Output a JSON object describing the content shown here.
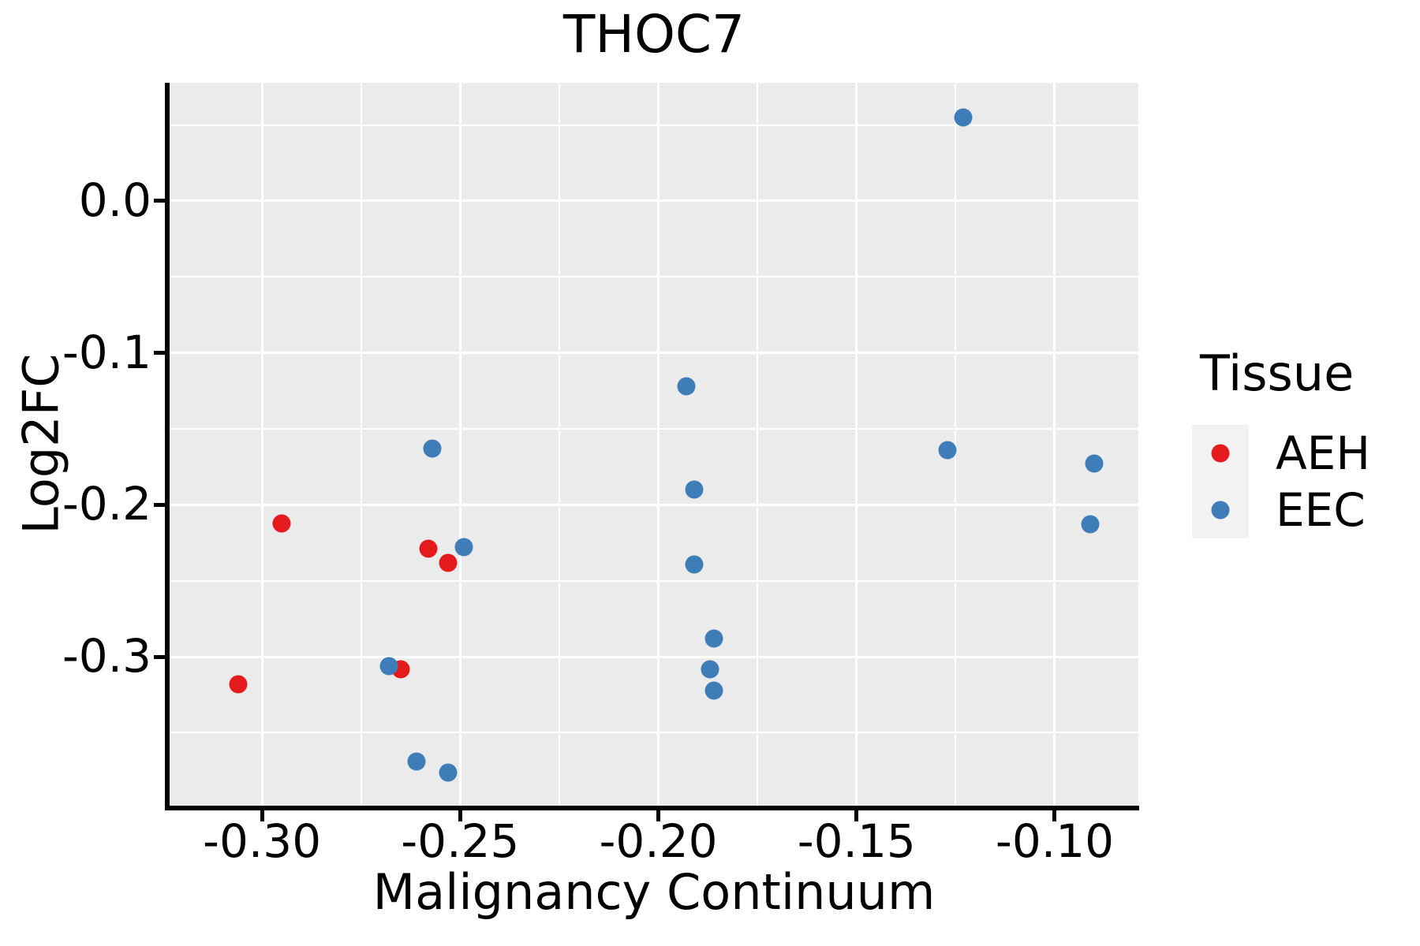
{
  "title": "THOC7",
  "axes": {
    "x": {
      "label": "Malignancy Continuum",
      "ticks": [
        -0.3,
        -0.25,
        -0.2,
        -0.15,
        -0.1
      ],
      "tick_labels": [
        "-0.30",
        "-0.25",
        "-0.20",
        "-0.15",
        "-0.10"
      ],
      "minor_ticks": [
        -0.275,
        -0.225,
        -0.175,
        -0.125
      ],
      "range": [
        -0.3235,
        -0.0789
      ]
    },
    "y": {
      "label": "Log2FC",
      "ticks": [
        0.0,
        -0.1,
        -0.2,
        -0.3
      ],
      "tick_labels": [
        "0.0",
        "-0.1",
        "-0.2",
        "-0.3"
      ],
      "minor_ticks": [
        0.05,
        -0.05,
        -0.15,
        -0.25,
        -0.35
      ],
      "range": [
        -0.398,
        0.0778
      ]
    }
  },
  "legend": {
    "title": "Tissue",
    "entries": [
      {
        "label": "AEH",
        "color": "#E41A1C"
      },
      {
        "label": "EEC",
        "color": "#3E7DB8"
      }
    ]
  },
  "colors": {
    "panel_bg": "#EBEBEB",
    "grid": "#FFFFFF",
    "axis": "#000000",
    "legend_key_bg": "#F2F2F2",
    "aeh": "#E41A1C",
    "eec": "#3E7DB8"
  },
  "chart_data": {
    "type": "scatter",
    "title": "THOC7",
    "xlabel": "Malignancy Continuum",
    "ylabel": "Log2FC",
    "xlim": [
      -0.3235,
      -0.0789
    ],
    "ylim": [
      -0.398,
      0.0778
    ],
    "grid": "on",
    "legend_title": "Tissue",
    "legend_position": "right",
    "series": [
      {
        "name": "AEH",
        "color": "#E41A1C",
        "points": [
          [
            -0.295,
            -0.212
          ],
          [
            -0.306,
            -0.318
          ],
          [
            -0.265,
            -0.308
          ],
          [
            -0.258,
            -0.229
          ],
          [
            -0.253,
            -0.238
          ]
        ]
      },
      {
        "name": "EEC",
        "color": "#3E7DB8",
        "points": [
          [
            -0.268,
            -0.306
          ],
          [
            -0.257,
            -0.163
          ],
          [
            -0.249,
            -0.228
          ],
          [
            -0.261,
            -0.369
          ],
          [
            -0.253,
            -0.376
          ],
          [
            -0.193,
            -0.122
          ],
          [
            -0.191,
            -0.19
          ],
          [
            -0.191,
            -0.239
          ],
          [
            -0.186,
            -0.288
          ],
          [
            -0.187,
            -0.308
          ],
          [
            -0.186,
            -0.322
          ],
          [
            -0.123,
            0.055
          ],
          [
            -0.127,
            -0.164
          ],
          [
            -0.09,
            -0.173
          ],
          [
            -0.091,
            -0.213
          ]
        ]
      }
    ]
  }
}
